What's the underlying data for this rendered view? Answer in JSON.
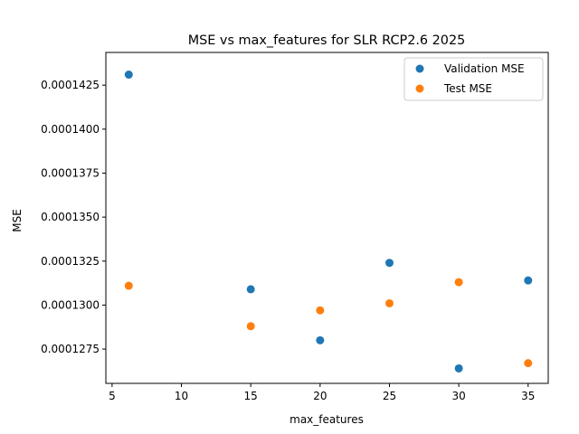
{
  "chart_data": {
    "type": "scatter",
    "title": "MSE vs max_features for SLR RCP2.6 2025",
    "xlabel": "max_features",
    "ylabel": "MSE",
    "xlim": [
      4.55,
      36.45
    ],
    "ylim": [
      0.00012555,
      0.00014436
    ],
    "xticks": [
      5,
      10,
      15,
      20,
      25,
      30,
      35
    ],
    "xtick_labels": [
      "5",
      "10",
      "15",
      "20",
      "25",
      "30",
      "35"
    ],
    "yticks": [
      0.0001275,
      0.00013,
      0.0001325,
      0.000135,
      0.0001375,
      0.00014,
      0.0001425
    ],
    "ytick_labels": [
      "0.0001275",
      "0.0001300",
      "0.0001325",
      "0.0001350",
      "0.0001375",
      "0.0001400",
      "0.0001425"
    ],
    "legend_position": "upper right",
    "grid": false,
    "series": [
      {
        "name": "Validation MSE",
        "color": "#1f77b4",
        "points": [
          {
            "x": 6.2,
            "y": 0.0001431
          },
          {
            "x": 15,
            "y": 0.0001309
          },
          {
            "x": 20,
            "y": 0.000128
          },
          {
            "x": 25,
            "y": 0.0001324
          },
          {
            "x": 30,
            "y": 0.0001264
          },
          {
            "x": 35,
            "y": 0.0001314
          }
        ]
      },
      {
        "name": "Test MSE",
        "color": "#ff7f0e",
        "points": [
          {
            "x": 6.2,
            "y": 0.0001311
          },
          {
            "x": 15,
            "y": 0.0001288
          },
          {
            "x": 20,
            "y": 0.0001297
          },
          {
            "x": 25,
            "y": 0.0001301
          },
          {
            "x": 30,
            "y": 0.0001313
          },
          {
            "x": 35,
            "y": 0.0001267
          }
        ]
      }
    ]
  }
}
